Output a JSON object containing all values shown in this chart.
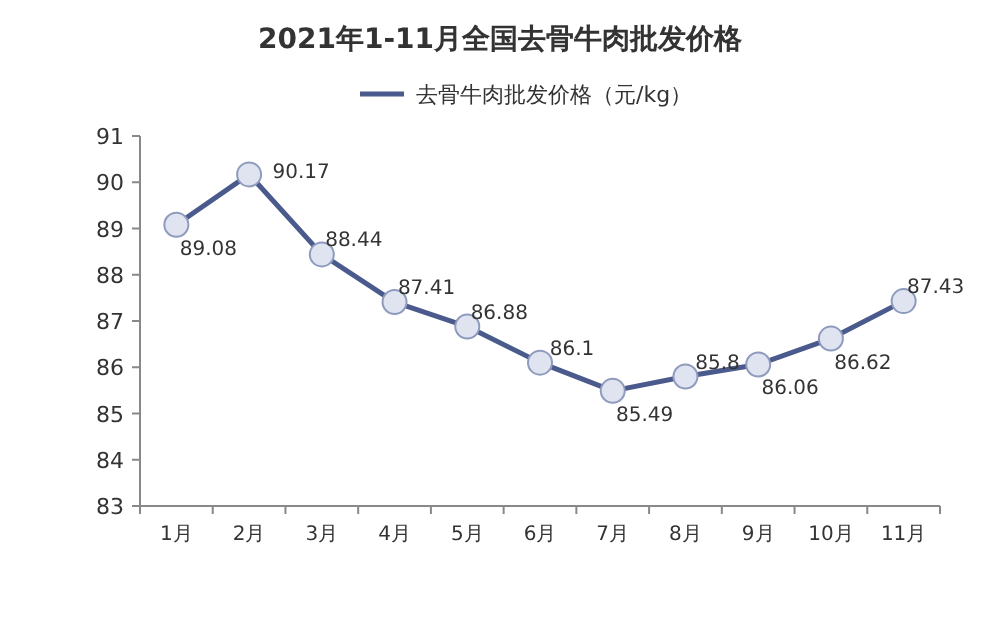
{
  "chart_data": {
    "type": "line",
    "title": "2021年1-11月全国去骨牛肉批发价格",
    "categories": [
      "1月",
      "2月",
      "3月",
      "4月",
      "5月",
      "6月",
      "7月",
      "8月",
      "9月",
      "10月",
      "11月"
    ],
    "series": [
      {
        "name": "去骨牛肉批发价格（元/kg）",
        "color": "#4a5a8c",
        "values": [
          89.08,
          90.17,
          88.44,
          87.41,
          86.88,
          86.1,
          85.49,
          85.8,
          86.06,
          86.62,
          87.43
        ]
      }
    ],
    "ylim": [
      83,
      91
    ],
    "yticks": [
      83,
      84,
      85,
      86,
      87,
      88,
      89,
      90,
      91
    ],
    "data_labels": true,
    "legend": "top",
    "marker": "circle",
    "line_style": "solid"
  }
}
